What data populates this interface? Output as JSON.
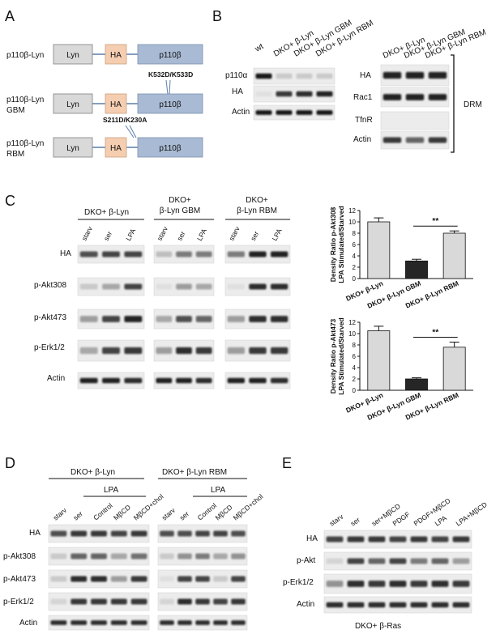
{
  "panels": {
    "A": {
      "letter": "A",
      "constructs": [
        {
          "name": "p110β-Lyn",
          "domains": [
            "Lyn",
            "HA",
            "p110β"
          ],
          "mutation": ""
        },
        {
          "name": "p110β-Lyn\nGBM",
          "domains": [
            "Lyn",
            "HA",
            "p110β"
          ],
          "mutation": "K532D/K533D"
        },
        {
          "name": "p110β-Lyn\nRBM",
          "domains": [
            "Lyn",
            "HA",
            "p110β"
          ],
          "mutation": "S211D/K230A"
        }
      ]
    },
    "B": {
      "letter": "B",
      "left_lanes": [
        "wt",
        "DKO+ β-Lyn",
        "DKO+ β-Lyn GBM",
        "DKO+ β-Lyn RBM"
      ],
      "left_rows": [
        "p110α",
        "HA",
        "Actin"
      ],
      "right_lanes": [
        "DKO+ β-Lyn",
        "DKO+ β-Lyn GBM",
        "DKO+ β-Lyn RBM"
      ],
      "right_rows": [
        "HA",
        "Rac1",
        "TfnR",
        "Actin"
      ],
      "bracket_label": "DRM"
    },
    "C": {
      "letter": "C",
      "groups": [
        "DKO+ β-Lyn",
        "DKO+\nβ-Lyn GBM",
        "DKO+\nβ-Lyn RBM"
      ],
      "lanes": [
        "starv",
        "ser",
        "LPA"
      ],
      "rows": [
        "HA",
        "p-Akt308",
        "p-Akt473",
        "p-Erk1/2",
        "Actin"
      ]
    },
    "D": {
      "letter": "D",
      "groups": [
        "DKO+ β-Lyn",
        "DKO+ β-Lyn RBM"
      ],
      "treatment_label": "LPA",
      "lanes": [
        "starv",
        "ser",
        "Control",
        "MβCD",
        "MβCD+chol"
      ],
      "rows": [
        "HA",
        "p-Akt308",
        "p-Akt473",
        "p-Erk1/2",
        "Actin"
      ]
    },
    "E": {
      "letter": "E",
      "lanes": [
        "starv",
        "ser",
        "ser+MβCD",
        "PDGF",
        "PDGF+MβCD",
        "LPA",
        "LPA+MβCD"
      ],
      "rows": [
        "HA",
        "p-Akt",
        "p-Erk1/2",
        "Actin"
      ],
      "caption": "DKO+ β-Ras"
    }
  },
  "chart_data": [
    {
      "type": "bar",
      "ylabel": "Density Ratio p-Akt308\nLPA Stimulated/Starved",
      "categories": [
        "DKO+ β-Lyn",
        "DKO+ β-Lyn GBM",
        "DKO+ β-Lyn RBM"
      ],
      "values": [
        10,
        3.1,
        8
      ],
      "errors": [
        0.7,
        0.3,
        0.4
      ],
      "colors": [
        "#d9d9d9",
        "#262626",
        "#d9d9d9"
      ],
      "ylim": [
        0,
        12
      ],
      "yticks": [
        0,
        2,
        4,
        6,
        8,
        10,
        12
      ],
      "significance": {
        "from": 1,
        "to": 2,
        "label": "**"
      }
    },
    {
      "type": "bar",
      "ylabel": "Density Ratio p-Akt473\nLPA Stimulated/Starved",
      "categories": [
        "DKO+ β-Lyn",
        "DKO+ β-Lyn GBM",
        "DKO+ β-Lyn RBM"
      ],
      "values": [
        10.5,
        2,
        7.6
      ],
      "errors": [
        0.8,
        0.2,
        0.9
      ],
      "colors": [
        "#d9d9d9",
        "#262626",
        "#d9d9d9"
      ],
      "ylim": [
        0,
        12
      ],
      "yticks": [
        0,
        2,
        4,
        6,
        8,
        10,
        12
      ],
      "significance": {
        "from": 1,
        "to": 2,
        "label": "**"
      }
    }
  ]
}
